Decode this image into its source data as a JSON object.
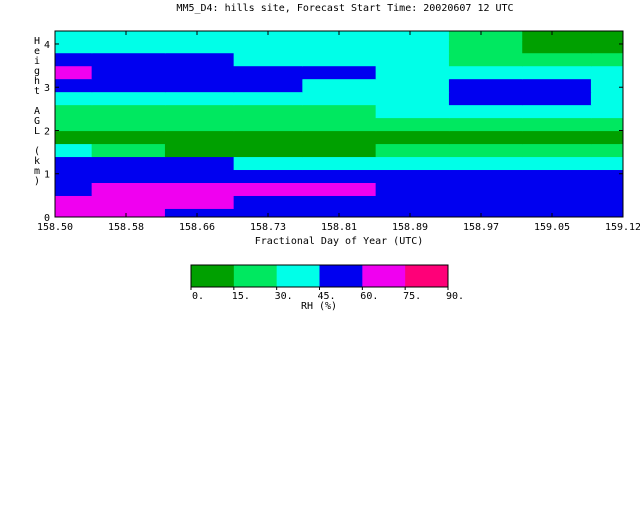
{
  "chart_data": {
    "type": "heatmap",
    "title": "MM5_D4: hills site,  Forecast Start Time: 20020607 12 UTC",
    "xlabel": "Fractional Day of Year (UTC)",
    "ylabel": "Height AGL (km)",
    "x_ticks": [
      "158.50",
      "158.58",
      "158.66",
      "158.73",
      "158.81",
      "158.89",
      "158.97",
      "159.05",
      "159.12"
    ],
    "y_ticks": [
      "0",
      "1",
      "2",
      "3",
      "4"
    ],
    "xlim": [
      158.5,
      159.12
    ],
    "ylim": [
      0,
      4.3
    ],
    "colorbar": {
      "label": "RH (%)",
      "levels": [
        "0.",
        "15.",
        "30.",
        "45.",
        "60.",
        "75.",
        "90."
      ],
      "colors": [
        "#00a000",
        "#00e860",
        "#00ffe8",
        "#0000f0",
        "#f000f0",
        "#ff0078"
      ]
    },
    "x": [
      158.5,
      158.58,
      158.66,
      158.73,
      158.81,
      158.89,
      158.97,
      159.05,
      159.12
    ],
    "y": [
      0.05,
      0.35,
      0.65,
      0.95,
      1.25,
      1.55,
      1.85,
      2.15,
      2.45,
      2.75,
      3.05,
      3.35,
      3.65,
      3.95,
      4.25
    ],
    "bins": [
      [
        4,
        4,
        3,
        3,
        3,
        3,
        3,
        3,
        3
      ],
      [
        4,
        4,
        4,
        3,
        3,
        3,
        3,
        3,
        3
      ],
      [
        3,
        4,
        4,
        4,
        4,
        3,
        3,
        3,
        3
      ],
      [
        3,
        3,
        3,
        3,
        3,
        3,
        3,
        3,
        3
      ],
      [
        3,
        3,
        3,
        2,
        2,
        2,
        2,
        2,
        2
      ],
      [
        2,
        1,
        0,
        0,
        0,
        1,
        1,
        1,
        1
      ],
      [
        0,
        0,
        0,
        0,
        0,
        0,
        0,
        0,
        0
      ],
      [
        1,
        1,
        1,
        1,
        1,
        1,
        1,
        1,
        1
      ],
      [
        1,
        1,
        1,
        1,
        1,
        2,
        2,
        2,
        2
      ],
      [
        2,
        2,
        2,
        2,
        2,
        2,
        3,
        3,
        2
      ],
      [
        3,
        3,
        3,
        3,
        2,
        2,
        3,
        3,
        2
      ],
      [
        4,
        3,
        3,
        3,
        3,
        2,
        2,
        2,
        2
      ],
      [
        3,
        3,
        3,
        2,
        2,
        2,
        1,
        1,
        1
      ],
      [
        2,
        2,
        2,
        2,
        2,
        2,
        1,
        0,
        0
      ],
      [
        2,
        2,
        2,
        2,
        2,
        2,
        1,
        0,
        0
      ]
    ]
  }
}
